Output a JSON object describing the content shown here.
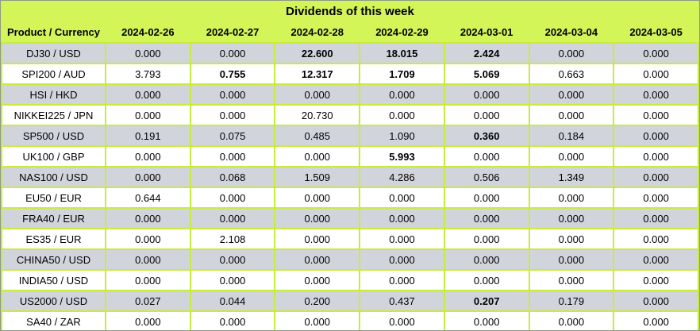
{
  "title": "Dividends of this week",
  "colors": {
    "header_bg": "#d4f558",
    "grid_border": "#c8ec3e",
    "row_odd_bg": "#d2d4dc",
    "row_even_bg": "#ffffff",
    "text": "#000000"
  },
  "table": {
    "header": [
      "Product / Currency",
      "2024-02-26",
      "2024-02-27",
      "2024-02-28",
      "2024-02-29",
      "2024-03-01",
      "2024-03-04",
      "2024-03-05"
    ],
    "rows": [
      {
        "label": "DJ30 / USD",
        "values": [
          "0.000",
          "0.000",
          "22.600",
          "18.015",
          "2.424",
          "0.000",
          "0.000"
        ],
        "bold": [
          2,
          3,
          4
        ]
      },
      {
        "label": "SPI200 / AUD",
        "values": [
          "3.793",
          "0.755",
          "12.317",
          "1.709",
          "5.069",
          "0.663",
          "0.000"
        ],
        "bold": [
          1,
          2,
          3,
          4
        ]
      },
      {
        "label": "HSI / HKD",
        "values": [
          "0.000",
          "0.000",
          "0.000",
          "0.000",
          "0.000",
          "0.000",
          "0.000"
        ],
        "bold": []
      },
      {
        "label": "NIKKEI225 / JPN",
        "values": [
          "0.000",
          "0.000",
          "20.730",
          "0.000",
          "0.000",
          "0.000",
          "0.000"
        ],
        "bold": []
      },
      {
        "label": "SP500 / USD",
        "values": [
          "0.191",
          "0.075",
          "0.485",
          "1.090",
          "0.360",
          "0.184",
          "0.000"
        ],
        "bold": [
          4
        ]
      },
      {
        "label": "UK100 / GBP",
        "values": [
          "0.000",
          "0.000",
          "0.000",
          "5.993",
          "0.000",
          "0.000",
          "0.000"
        ],
        "bold": [
          3
        ]
      },
      {
        "label": "NAS100 / USD",
        "values": [
          "0.000",
          "0.068",
          "1.509",
          "4.286",
          "0.506",
          "1.349",
          "0.000"
        ],
        "bold": []
      },
      {
        "label": "EU50 / EUR",
        "values": [
          "0.644",
          "0.000",
          "0.000",
          "0.000",
          "0.000",
          "0.000",
          "0.000"
        ],
        "bold": []
      },
      {
        "label": "FRA40 / EUR",
        "values": [
          "0.000",
          "0.000",
          "0.000",
          "0.000",
          "0.000",
          "0.000",
          "0.000"
        ],
        "bold": []
      },
      {
        "label": "ES35 / EUR",
        "values": [
          "0.000",
          "2.108",
          "0.000",
          "0.000",
          "0.000",
          "0.000",
          "0.000"
        ],
        "bold": []
      },
      {
        "label": "CHINA50 / USD",
        "values": [
          "0.000",
          "0.000",
          "0.000",
          "0.000",
          "0.000",
          "0.000",
          "0.000"
        ],
        "bold": []
      },
      {
        "label": "INDIA50 / USD",
        "values": [
          "0.000",
          "0.000",
          "0.000",
          "0.000",
          "0.000",
          "0.000",
          "0.000"
        ],
        "bold": []
      },
      {
        "label": "US2000 / USD",
        "values": [
          "0.027",
          "0.044",
          "0.200",
          "0.437",
          "0.207",
          "0.179",
          "0.000"
        ],
        "bold": [
          4
        ]
      },
      {
        "label": "SA40 / ZAR",
        "values": [
          "0.000",
          "0.000",
          "0.000",
          "0.000",
          "0.000",
          "0.000",
          "0.000"
        ],
        "bold": []
      }
    ]
  },
  "chart_data": {
    "type": "table",
    "title": "Dividends of this week",
    "columns": [
      "2024-02-26",
      "2024-02-27",
      "2024-02-28",
      "2024-02-29",
      "2024-03-01",
      "2024-03-04",
      "2024-03-05"
    ],
    "rows": [
      {
        "product": "DJ30 / USD",
        "values": [
          0.0,
          0.0,
          22.6,
          18.015,
          2.424,
          0.0,
          0.0
        ]
      },
      {
        "product": "SPI200 / AUD",
        "values": [
          3.793,
          0.755,
          12.317,
          1.709,
          5.069,
          0.663,
          0.0
        ]
      },
      {
        "product": "HSI / HKD",
        "values": [
          0.0,
          0.0,
          0.0,
          0.0,
          0.0,
          0.0,
          0.0
        ]
      },
      {
        "product": "NIKKEI225 / JPN",
        "values": [
          0.0,
          0.0,
          20.73,
          0.0,
          0.0,
          0.0,
          0.0
        ]
      },
      {
        "product": "SP500 / USD",
        "values": [
          0.191,
          0.075,
          0.485,
          1.09,
          0.36,
          0.184,
          0.0
        ]
      },
      {
        "product": "UK100 / GBP",
        "values": [
          0.0,
          0.0,
          0.0,
          5.993,
          0.0,
          0.0,
          0.0
        ]
      },
      {
        "product": "NAS100 / USD",
        "values": [
          0.0,
          0.068,
          1.509,
          4.286,
          0.506,
          1.349,
          0.0
        ]
      },
      {
        "product": "EU50 / EUR",
        "values": [
          0.644,
          0.0,
          0.0,
          0.0,
          0.0,
          0.0,
          0.0
        ]
      },
      {
        "product": "FRA40 / EUR",
        "values": [
          0.0,
          0.0,
          0.0,
          0.0,
          0.0,
          0.0,
          0.0
        ]
      },
      {
        "product": "ES35 / EUR",
        "values": [
          0.0,
          2.108,
          0.0,
          0.0,
          0.0,
          0.0,
          0.0
        ]
      },
      {
        "product": "CHINA50 / USD",
        "values": [
          0.0,
          0.0,
          0.0,
          0.0,
          0.0,
          0.0,
          0.0
        ]
      },
      {
        "product": "INDIA50 / USD",
        "values": [
          0.0,
          0.0,
          0.0,
          0.0,
          0.0,
          0.0,
          0.0
        ]
      },
      {
        "product": "US2000 / USD",
        "values": [
          0.027,
          0.044,
          0.2,
          0.437,
          0.207,
          0.179,
          0.0
        ]
      },
      {
        "product": "SA40 / ZAR",
        "values": [
          0.0,
          0.0,
          0.0,
          0.0,
          0.0,
          0.0,
          0.0
        ]
      }
    ]
  }
}
